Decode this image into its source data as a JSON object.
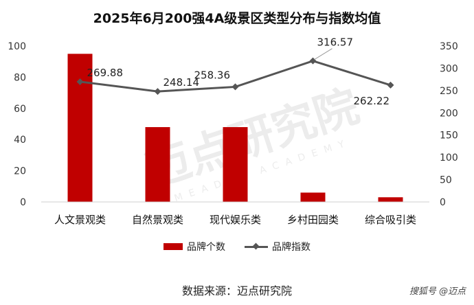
{
  "title": "2025年6月200强4A级景区类型分布与指数均值",
  "watermark": {
    "text": "迈点研究院",
    "subtext": "MEADIN ACADEMY"
  },
  "source": "数据来源：迈点研究院",
  "badge": "搜狐号 @迈点",
  "colors": {
    "bar": "#c00000",
    "line": "#555555"
  },
  "chart_data": {
    "type": "bar+line",
    "categories": [
      "人文景观类",
      "自然景观类",
      "现代娱乐类",
      "乡村田园类",
      "综合吸引类"
    ],
    "series": [
      {
        "name": "品牌个数",
        "type": "bar",
        "axis": "left",
        "values": [
          95,
          48,
          48,
          6,
          3
        ]
      },
      {
        "name": "品牌指数",
        "type": "line",
        "axis": "right",
        "values": [
          269.88,
          248.14,
          258.36,
          316.57,
          262.22
        ],
        "labels": [
          "269.88",
          "248.14",
          "258.36",
          "316.57",
          "262.22"
        ]
      }
    ],
    "y_left": {
      "min": 0,
      "max": 100,
      "ticks": [
        0,
        20,
        40,
        60,
        80,
        100
      ]
    },
    "y_right": {
      "min": 0,
      "max": 350,
      "ticks": [
        0,
        50,
        100,
        150,
        200,
        250,
        300,
        350
      ]
    },
    "legend_position": "bottom",
    "grid": false
  }
}
